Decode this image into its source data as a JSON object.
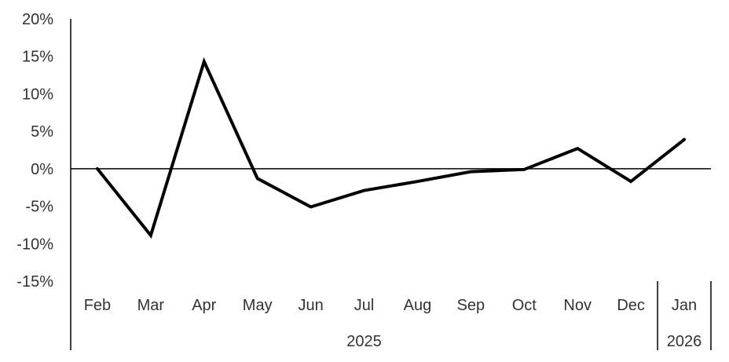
{
  "chart_data": {
    "type": "line",
    "title": "",
    "xlabel": "",
    "ylabel": "",
    "categories": [
      "Feb",
      "Mar",
      "Apr",
      "May",
      "Jun",
      "Jul",
      "Aug",
      "Sep",
      "Oct",
      "Nov",
      "Dec",
      "Jan"
    ],
    "year_groups": [
      {
        "label": "2025",
        "count": 11
      },
      {
        "label": "2026",
        "count": 1
      }
    ],
    "values": [
      0.0,
      -8.9,
      14.3,
      -1.3,
      -5.1,
      -2.9,
      -1.7,
      -0.4,
      -0.1,
      2.7,
      -1.7,
      3.9
    ],
    "ylim": [
      -15,
      20
    ],
    "yticks": [
      20,
      15,
      10,
      5,
      0,
      -5,
      -10,
      -15
    ],
    "ytick_labels": [
      "20%",
      "15%",
      "10%",
      "5%",
      "0%",
      "-5%",
      "-10%",
      "-15%"
    ],
    "grid": false,
    "legend": "none",
    "line_color": "#000000"
  }
}
